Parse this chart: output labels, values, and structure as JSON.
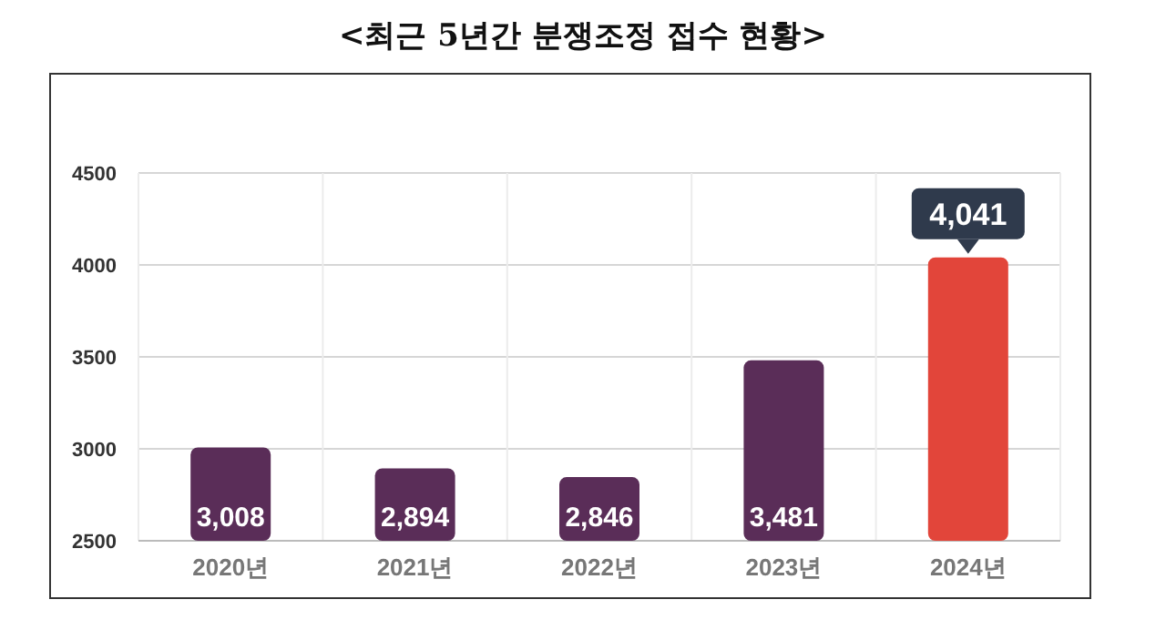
{
  "chart_data": {
    "type": "bar",
    "title": "<최근 5년간 분쟁조정 접수 현황>",
    "categories": [
      "2020년",
      "2021년",
      "2022년",
      "2023년",
      "2024년"
    ],
    "values": [
      3008,
      2894,
      2846,
      3481,
      4041
    ],
    "value_labels": [
      "3,008",
      "2,894",
      "2,846",
      "3,481",
      "4,041"
    ],
    "colors": [
      "#5a2d58",
      "#5a2d58",
      "#5a2d58",
      "#5a2d58",
      "#e2453a"
    ],
    "ylim": [
      2500,
      4500
    ],
    "yticks": [
      2500,
      3000,
      3500,
      4000,
      4500
    ],
    "grid": true
  }
}
